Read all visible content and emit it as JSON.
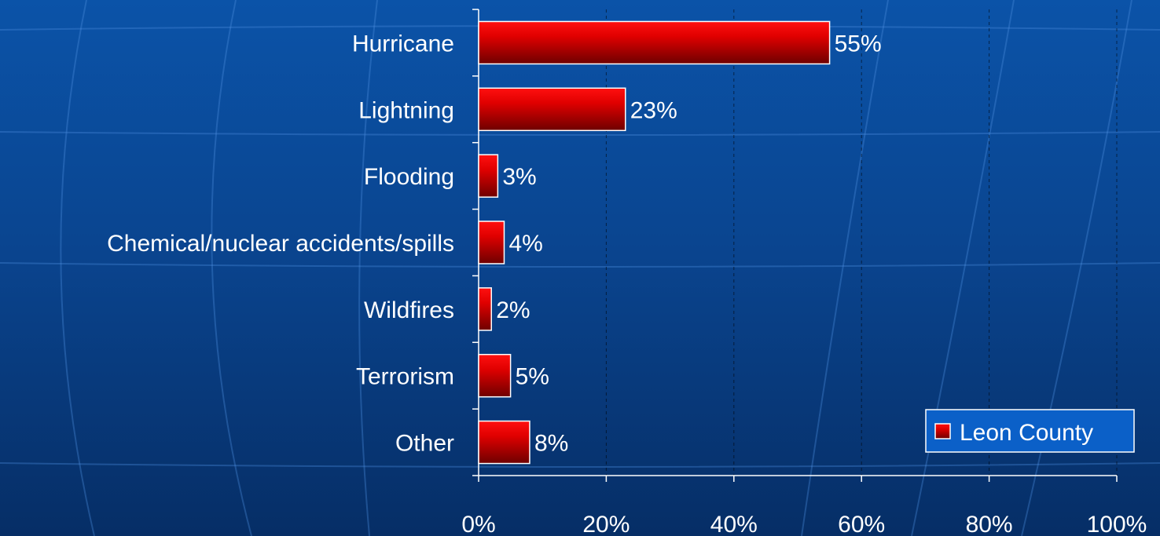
{
  "chart_data": {
    "type": "bar",
    "orientation": "horizontal",
    "categories": [
      "Hurricane",
      "Lightning",
      "Flooding",
      "Chemical/nuclear accidents/spills",
      "Wildfires",
      "Terrorism",
      "Other"
    ],
    "series": [
      {
        "name": "Leon County",
        "values": [
          55,
          23,
          3,
          4,
          2,
          5,
          8
        ],
        "labels": [
          "55%",
          "23%",
          "3%",
          "4%",
          "2%",
          "5%",
          "8%"
        ]
      }
    ],
    "xlim": [
      0,
      100
    ],
    "ticks": [
      0,
      20,
      40,
      60,
      80,
      100
    ],
    "tick_labels": [
      "0%",
      "20%",
      "40%",
      "60%",
      "80%",
      "100%"
    ],
    "gridlines": "vertical, dashed",
    "legend_position": "bottom-right",
    "colors": {
      "bar_top": "#ff1010",
      "bar_bottom": "#6e0000",
      "bar_border": "#ffffff",
      "legend_bg": "#0b60c8",
      "background": "#0a4a96"
    }
  }
}
